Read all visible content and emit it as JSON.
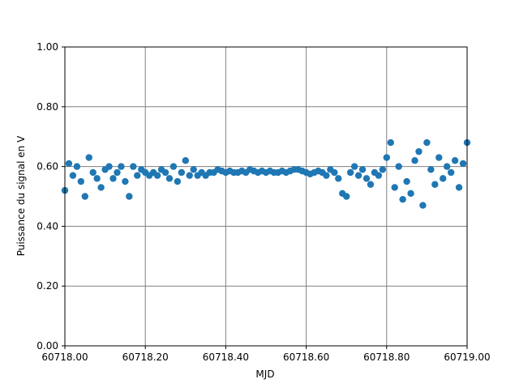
{
  "chart_data": {
    "type": "scatter",
    "xlabel": "MJD",
    "ylabel": "Puissance du signal en V",
    "color": "#1f77b4",
    "grid": true,
    "xlim": [
      60718.0,
      60719.0
    ],
    "xticks": [
      {
        "value": 60718.0,
        "label": "60718.00"
      },
      {
        "value": 60718.2,
        "label": "60718.20"
      },
      {
        "value": 60718.4,
        "label": "60718.40"
      },
      {
        "value": 60718.6,
        "label": "60718.60"
      },
      {
        "value": 60718.8,
        "label": "60718.80"
      },
      {
        "value": 60719.0,
        "label": "60719.00"
      }
    ],
    "ylim": [
      0,
      1
    ],
    "yticks": [
      {
        "value": 0,
        "label": "0.00"
      },
      {
        "value": 0.2,
        "label": "0.20"
      },
      {
        "value": 0.4,
        "label": "0.40"
      },
      {
        "value": 0.6,
        "label": "0.60"
      },
      {
        "value": 0.8,
        "label": "0.80"
      },
      {
        "value": 1,
        "label": "1.00"
      }
    ],
    "x": [
      60718.0,
      60718.01,
      60718.02,
      60718.03,
      60718.04,
      60718.05,
      60718.06,
      60718.07,
      60718.08,
      60718.09,
      60718.1,
      60718.11,
      60718.12,
      60718.13,
      60718.14,
      60718.15,
      60718.16,
      60718.17,
      60718.18,
      60718.19,
      60718.2,
      60718.21,
      60718.22,
      60718.23,
      60718.24,
      60718.25,
      60718.26,
      60718.27,
      60718.28,
      60718.29,
      60718.3,
      60718.31,
      60718.32,
      60718.33,
      60718.34,
      60718.35,
      60718.36,
      60718.37,
      60718.38,
      60718.39,
      60718.4,
      60718.41,
      60718.42,
      60718.43,
      60718.44,
      60718.45,
      60718.46,
      60718.47,
      60718.48,
      60718.49,
      60718.5,
      60718.51,
      60718.52,
      60718.53,
      60718.54,
      60718.55,
      60718.56,
      60718.57,
      60718.58,
      60718.59,
      60718.6,
      60718.61,
      60718.62,
      60718.63,
      60718.64,
      60718.65,
      60718.66,
      60718.67,
      60718.68,
      60718.69,
      60718.7,
      60718.71,
      60718.72,
      60718.73,
      60718.74,
      60718.75,
      60718.76,
      60718.77,
      60718.78,
      60718.79,
      60718.8,
      60718.81,
      60718.82,
      60718.83,
      60718.84,
      60718.85,
      60718.86,
      60718.87,
      60718.88,
      60718.89,
      60718.9,
      60718.91,
      60718.92,
      60718.93,
      60718.94,
      60718.95,
      60718.96,
      60718.97,
      60718.98,
      60718.99,
      60719.0
    ],
    "values": [
      0.52,
      0.61,
      0.57,
      0.6,
      0.55,
      0.5,
      0.63,
      0.58,
      0.56,
      0.53,
      0.59,
      0.6,
      0.56,
      0.58,
      0.6,
      0.55,
      0.5,
      0.6,
      0.57,
      0.59,
      0.58,
      0.57,
      0.58,
      0.57,
      0.59,
      0.58,
      0.56,
      0.6,
      0.55,
      0.58,
      0.62,
      0.57,
      0.59,
      0.57,
      0.58,
      0.57,
      0.58,
      0.58,
      0.59,
      0.585,
      0.58,
      0.585,
      0.58,
      0.58,
      0.585,
      0.58,
      0.59,
      0.585,
      0.58,
      0.585,
      0.58,
      0.585,
      0.58,
      0.58,
      0.585,
      0.58,
      0.585,
      0.59,
      0.59,
      0.585,
      0.58,
      0.575,
      0.58,
      0.585,
      0.58,
      0.57,
      0.59,
      0.58,
      0.56,
      0.51,
      0.5,
      0.58,
      0.6,
      0.57,
      0.59,
      0.56,
      0.54,
      0.58,
      0.57,
      0.59,
      0.63,
      0.68,
      0.53,
      0.6,
      0.49,
      0.55,
      0.51,
      0.62,
      0.65,
      0.47,
      0.68,
      0.59,
      0.54,
      0.63,
      0.56,
      0.6,
      0.58,
      0.62,
      0.53,
      0.61,
      0.68
    ]
  }
}
